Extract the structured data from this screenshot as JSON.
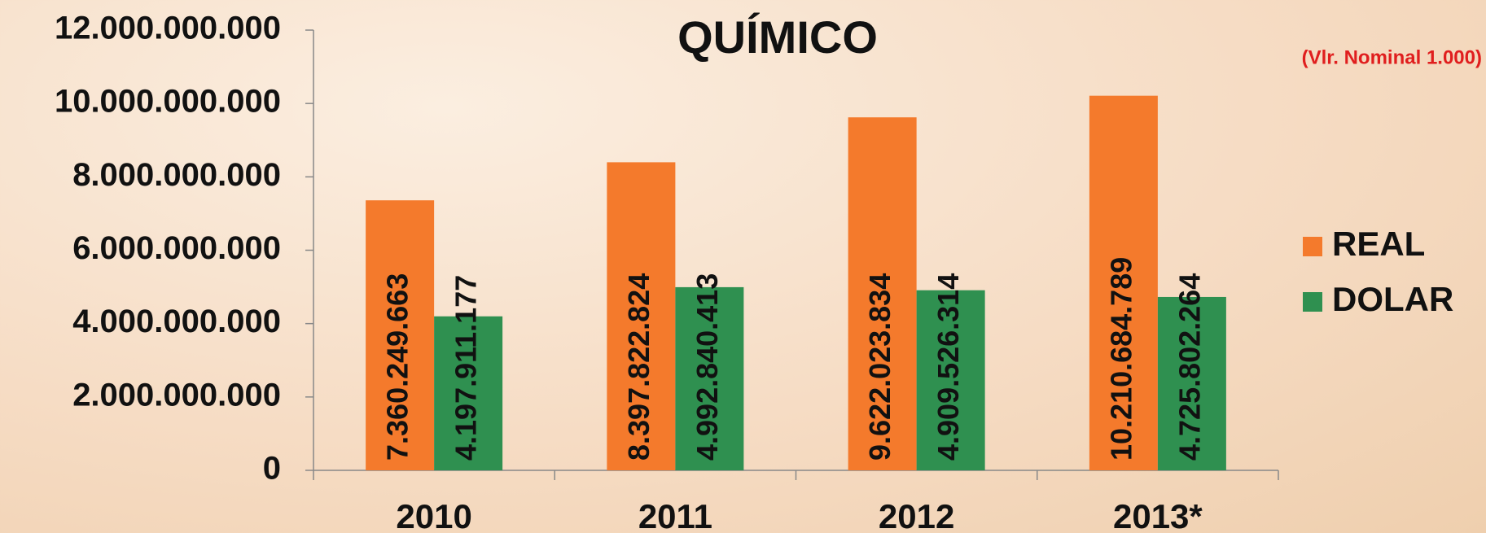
{
  "chart_data": {
    "type": "bar",
    "title": "QUÍMICO",
    "subtitle": "(Vlr. Nominal 1.000)",
    "categories": [
      "2010",
      "2011",
      "2012",
      "2013*"
    ],
    "series": [
      {
        "name": "REAL",
        "color": "#f47a2c",
        "values": [
          7360249663,
          8397822824,
          9622023834,
          10210684789
        ],
        "value_labels": [
          "7.360.249.663",
          "8.397.822.824",
          "9.622.023.834",
          "10.210.684.789"
        ]
      },
      {
        "name": "DOLAR",
        "color": "#2f9050",
        "values": [
          4197911177,
          4992840413,
          4909526314,
          4725802264
        ],
        "value_labels": [
          "4.197.911.177",
          "4.992.840.413",
          "4.909.526.314",
          "4.725.802.264"
        ]
      }
    ],
    "ylim": [
      0,
      12000000000
    ],
    "yticks": [
      {
        "value": 0,
        "label": "0"
      },
      {
        "value": 2000000000,
        "label": "2.000.000.000"
      },
      {
        "value": 4000000000,
        "label": "4.000.000.000"
      },
      {
        "value": 6000000000,
        "label": "6.000.000.000"
      },
      {
        "value": 8000000000,
        "label": "8.000.000.000"
      },
      {
        "value": 10000000000,
        "label": "10.000.000.000"
      },
      {
        "value": 12000000000,
        "label": "12.000.000.000"
      }
    ],
    "legend": "right"
  }
}
